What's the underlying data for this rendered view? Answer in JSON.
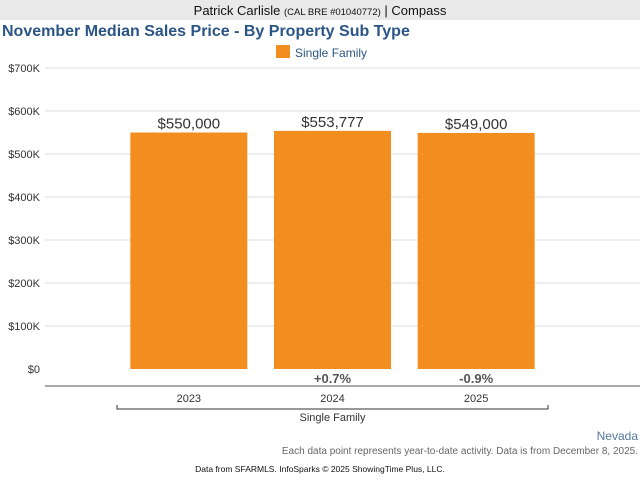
{
  "header": {
    "agent_name": "Patrick Carlisle",
    "license": "(CAL BRE #01040772)",
    "separator": " | ",
    "brokerage": "Compass"
  },
  "footer": {
    "region": "Nevada",
    "note": "Each data point represents year-to-date activity. Data is from December 8, 2025.",
    "credit": "Data from SFARMLS. InfoSparks © 2025 ShowingTime Plus, LLC."
  },
  "colors": {
    "bar": "#f18e1f",
    "title": "#2b5585",
    "grid": "#dddddd"
  },
  "chart_data": {
    "type": "bar",
    "title": "November Median Sales Price - By Property Sub Type",
    "categories": [
      "2023",
      "2024",
      "2025"
    ],
    "group_label": "Single Family",
    "series": [
      {
        "name": "Single Family",
        "values": [
          550000,
          553777,
          549000
        ],
        "data_labels": [
          "$550,000",
          "$553,777",
          "$549,000"
        ]
      }
    ],
    "changes": [
      "",
      "+0.7%",
      "-0.9%"
    ],
    "ylim": [
      0,
      700000
    ],
    "yticks": [
      0,
      100000,
      200000,
      300000,
      400000,
      500000,
      600000,
      700000
    ],
    "ytick_labels": [
      "$0",
      "$100K",
      "$200K",
      "$300K",
      "$400K",
      "$500K",
      "$600K",
      "$700K"
    ],
    "legend_position": "top-center",
    "grid": true
  }
}
